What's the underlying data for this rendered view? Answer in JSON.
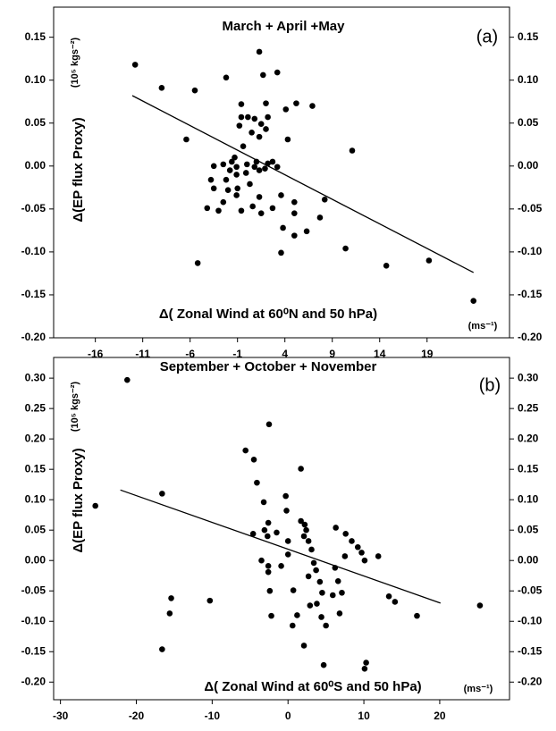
{
  "chart_data": [
    {
      "type": "scatter",
      "title": "March + April +May",
      "panel_label": "(a)",
      "x_label": "Δ( Zonal Wind at 60⁰N and 50 hPa)",
      "x_unit": "(ms⁻¹)",
      "y_label": "Δ(EP flux Proxy)",
      "y_unit": "(10⁵ kgs⁻²)",
      "color": "#000000",
      "xlim": [
        -20.4,
        27.7
      ],
      "ylim": [
        -0.2,
        0.185
      ],
      "xticks": [
        -16,
        -11,
        -6,
        -1,
        4,
        9,
        14,
        19
      ],
      "yticks": [
        {
          "value": -0.2,
          "label": "-0.20"
        },
        {
          "value": -0.15,
          "label": "-0.15"
        },
        {
          "value": -0.1,
          "label": "-0.10"
        },
        {
          "value": -0.05,
          "label": "-0.05"
        },
        {
          "value": 0,
          "label": "0.00"
        },
        {
          "value": 0.05,
          "label": "0.05"
        },
        {
          "value": 0.1,
          "label": "0.10"
        },
        {
          "value": 0.15,
          "label": "0.15"
        }
      ],
      "x": [
        -11.8,
        -9.0,
        -5.5,
        -6.4,
        -2.2,
        1.3,
        1.7,
        3.2,
        -0.6,
        0.1,
        0.8,
        1.5,
        2.0,
        -0.6,
        -0.8,
        0.5,
        1.3,
        2.2,
        4.1,
        5.2,
        6.9,
        2.0,
        4.3,
        -0.4,
        11.1,
        -1.3,
        -1.6,
        -2.5,
        -1.1,
        0.0,
        1.0,
        0.8,
        2.2,
        2.7,
        3.2,
        1.3,
        1.9,
        -0.1,
        -1.1,
        -1.8,
        -3.5,
        -2.2,
        -3.8,
        -3.5,
        -2.0,
        -1.0,
        0.3,
        1.3,
        3.6,
        5.0,
        -1.1,
        -2.5,
        -4.2,
        -3.0,
        -0.6,
        0.6,
        1.5,
        2.7,
        8.2,
        7.7,
        5.0,
        3.8,
        5.0,
        6.3,
        3.6,
        10.4,
        -5.2,
        14.7,
        19.2,
        23.9
      ],
      "values": [
        0.118,
        0.091,
        0.088,
        0.031,
        0.103,
        0.133,
        0.106,
        0.109,
        0.057,
        0.057,
        0.055,
        0.049,
        0.073,
        0.072,
        0.047,
        0.039,
        0.034,
        0.057,
        0.066,
        0.073,
        0.07,
        0.043,
        0.031,
        0.023,
        0.018,
        0.01,
        0.005,
        0.002,
        -0.001,
        0.002,
        0.005,
        -0.001,
        0.003,
        0.005,
        -0.001,
        -0.005,
        -0.003,
        -0.008,
        -0.01,
        -0.005,
        0.0,
        -0.016,
        -0.016,
        -0.026,
        -0.028,
        -0.026,
        -0.021,
        -0.036,
        -0.034,
        -0.042,
        -0.034,
        -0.042,
        -0.049,
        -0.052,
        -0.052,
        -0.047,
        -0.055,
        -0.049,
        -0.039,
        -0.06,
        -0.055,
        -0.072,
        -0.081,
        -0.076,
        -0.101,
        -0.096,
        -0.113,
        -0.116,
        -0.11,
        -0.157
      ],
      "fit_line": {
        "x": [
          -12.1,
          23.9
        ],
        "values": [
          0.082,
          -0.124
        ]
      }
    },
    {
      "type": "scatter",
      "title": "September + October + November",
      "panel_label": "(b)",
      "x_label": "Δ( Zonal Wind at 60⁰S and 50 hPa)",
      "x_unit": "(ms⁻¹)",
      "y_label": "Δ(EP flux Proxy)",
      "y_unit": "(10⁵ kgs⁻²)",
      "color": "#000000",
      "xlim": [
        -30.9,
        29.2
      ],
      "ylim": [
        -0.229,
        0.334
      ],
      "xticks": [
        -30,
        -20,
        -10,
        0,
        10,
        20
      ],
      "yticks": [
        {
          "value": -0.2,
          "label": "-0.20"
        },
        {
          "value": -0.15,
          "label": "-0.15"
        },
        {
          "value": -0.1,
          "label": "-0.10"
        },
        {
          "value": -0.05,
          "label": "-0.05"
        },
        {
          "value": 0,
          "label": "0.00"
        },
        {
          "value": 0.05,
          "label": "0.05"
        },
        {
          "value": 0.1,
          "label": "0.10"
        },
        {
          "value": 0.15,
          "label": "0.15"
        },
        {
          "value": 0.2,
          "label": "0.20"
        },
        {
          "value": 0.25,
          "label": "0.25"
        },
        {
          "value": 0.3,
          "label": "0.30"
        }
      ],
      "x": [
        -21.2,
        -25.4,
        -16.6,
        -16.6,
        -15.4,
        -15.6,
        -10.3,
        -5.6,
        -4.5,
        -4.1,
        -2.5,
        -3.2,
        -4.6,
        -3.1,
        -2.6,
        -2.7,
        -3.5,
        -2.6,
        -2.6,
        -2.4,
        -2.2,
        -0.3,
        -0.2,
        0.0,
        0.7,
        1.2,
        0.6,
        1.7,
        1.7,
        2.2,
        2.4,
        2.1,
        2.7,
        3.1,
        3.4,
        3.7,
        2.7,
        4.2,
        4.5,
        3.8,
        2.9,
        4.4,
        5.0,
        2.1,
        4.7,
        6.3,
        7.6,
        8.4,
        9.2,
        9.7,
        7.5,
        6.2,
        6.6,
        7.1,
        5.9,
        6.8,
        10.3,
        10.1,
        11.9,
        10.1,
        13.3,
        14.1,
        17.0,
        25.3,
        -1.5,
        0.0,
        -0.9
      ],
      "values": [
        0.297,
        0.09,
        0.11,
        -0.146,
        -0.062,
        -0.087,
        -0.066,
        0.181,
        0.166,
        0.128,
        0.224,
        0.096,
        0.044,
        0.05,
        0.062,
        0.04,
        0.0,
        -0.009,
        -0.019,
        -0.05,
        -0.091,
        0.106,
        0.082,
        0.01,
        -0.049,
        -0.09,
        -0.107,
        0.151,
        0.065,
        0.059,
        0.05,
        0.04,
        0.032,
        0.018,
        -0.004,
        -0.016,
        -0.026,
        -0.035,
        -0.053,
        -0.071,
        -0.074,
        -0.093,
        -0.107,
        -0.14,
        -0.172,
        0.054,
        0.044,
        0.032,
        0.022,
        0.013,
        0.007,
        -0.012,
        -0.034,
        -0.053,
        -0.057,
        -0.087,
        -0.168,
        -0.178,
        0.007,
        0.0,
        -0.059,
        -0.068,
        -0.091,
        -0.074,
        0.046,
        0.032,
        -0.009
      ],
      "fit_line": {
        "x": [
          -22.1,
          20.1
        ],
        "values": [
          0.116,
          -0.07
        ]
      }
    }
  ]
}
